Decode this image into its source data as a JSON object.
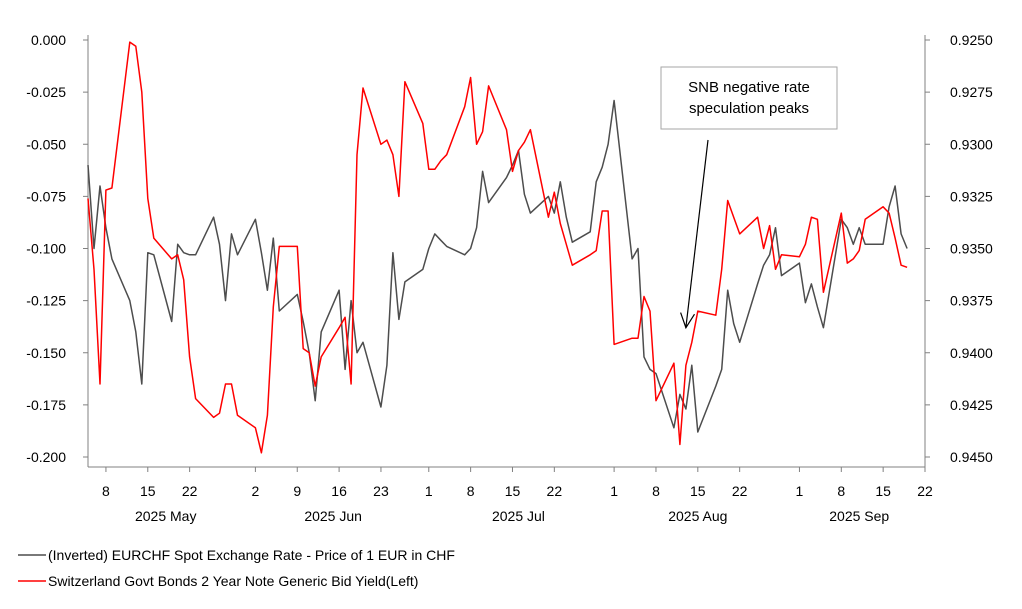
{
  "chart_data": {
    "type": "line",
    "xlim": [
      "2025-05-05",
      "2025-09-22"
    ],
    "y_left": {
      "ticks": [
        "0.000",
        "-0.025",
        "-0.050",
        "-0.075",
        "-0.100",
        "-0.125",
        "-0.150",
        "-0.175",
        "-0.200"
      ],
      "lim": [
        -0.2,
        0.0
      ]
    },
    "y_right": {
      "ticks": [
        "0.9250",
        "0.9275",
        "0.9300",
        "0.9325",
        "0.9350",
        "0.9375",
        "0.9400",
        "0.9425",
        "0.9450"
      ],
      "lim": [
        0.925,
        0.945
      ],
      "inverted": true
    },
    "x_ticks": [
      {
        "label": "8",
        "date": "2025-05-08"
      },
      {
        "label": "15",
        "date": "2025-05-15"
      },
      {
        "label": "22",
        "date": "2025-05-22"
      },
      {
        "label": "2",
        "date": "2025-06-02"
      },
      {
        "label": "9",
        "date": "2025-06-09"
      },
      {
        "label": "16",
        "date": "2025-06-16"
      },
      {
        "label": "23",
        "date": "2025-06-23"
      },
      {
        "label": "1",
        "date": "2025-07-01"
      },
      {
        "label": "8",
        "date": "2025-07-08"
      },
      {
        "label": "15",
        "date": "2025-07-15"
      },
      {
        "label": "22",
        "date": "2025-07-22"
      },
      {
        "label": "1",
        "date": "2025-08-01"
      },
      {
        "label": "8",
        "date": "2025-08-08"
      },
      {
        "label": "15",
        "date": "2025-08-15"
      },
      {
        "label": "22",
        "date": "2025-08-22"
      },
      {
        "label": "1",
        "date": "2025-09-01"
      },
      {
        "label": "8",
        "date": "2025-09-08"
      },
      {
        "label": "15",
        "date": "2025-09-15"
      },
      {
        "label": "22",
        "date": "2025-09-22"
      }
    ],
    "month_labels": [
      {
        "label": "2025 May",
        "date": "2025-05-18"
      },
      {
        "label": "2025 Jun",
        "date": "2025-06-15"
      },
      {
        "label": "2025 Jul",
        "date": "2025-07-16"
      },
      {
        "label": "2025 Aug",
        "date": "2025-08-15"
      },
      {
        "label": "2025 Sep",
        "date": "2025-09-11"
      }
    ],
    "series": [
      {
        "name": "(Inverted) EURCHF Spot Exchange Rate - Price of 1 EUR in CHF",
        "axis": "right",
        "color": "#4d4d4d",
        "points": [
          [
            "2025-05-05",
            0.931
          ],
          [
            "2025-05-06",
            0.935
          ],
          [
            "2025-05-07",
            0.932
          ],
          [
            "2025-05-08",
            0.934
          ],
          [
            "2025-05-09",
            0.9355
          ],
          [
            "2025-05-12",
            0.9375
          ],
          [
            "2025-05-13",
            0.939
          ],
          [
            "2025-05-14",
            0.9415
          ],
          [
            "2025-05-15",
            0.9352
          ],
          [
            "2025-05-16",
            0.9353
          ],
          [
            "2025-05-19",
            0.9385
          ],
          [
            "2025-05-20",
            0.9348
          ],
          [
            "2025-05-21",
            0.9352
          ],
          [
            "2025-05-22",
            0.9353
          ],
          [
            "2025-05-23",
            0.9353
          ],
          [
            "2025-05-26",
            0.9335
          ],
          [
            "2025-05-27",
            0.9348
          ],
          [
            "2025-05-28",
            0.9375
          ],
          [
            "2025-05-29",
            0.9343
          ],
          [
            "2025-05-30",
            0.9353
          ],
          [
            "2025-06-02",
            0.9336
          ],
          [
            "2025-06-03",
            0.9352
          ],
          [
            "2025-06-04",
            0.937
          ],
          [
            "2025-06-05",
            0.9345
          ],
          [
            "2025-06-06",
            0.938
          ],
          [
            "2025-06-09",
            0.9372
          ],
          [
            "2025-06-10",
            0.9385
          ],
          [
            "2025-06-11",
            0.94
          ],
          [
            "2025-06-12",
            0.9423
          ],
          [
            "2025-06-13",
            0.939
          ],
          [
            "2025-06-16",
            0.937
          ],
          [
            "2025-06-17",
            0.9408
          ],
          [
            "2025-06-18",
            0.9375
          ],
          [
            "2025-06-19",
            0.94
          ],
          [
            "2025-06-20",
            0.9395
          ],
          [
            "2025-06-23",
            0.9426
          ],
          [
            "2025-06-24",
            0.9406
          ],
          [
            "2025-06-25",
            0.9352
          ],
          [
            "2025-06-26",
            0.9384
          ],
          [
            "2025-06-27",
            0.9366
          ],
          [
            "2025-06-30",
            0.936
          ],
          [
            "2025-07-01",
            0.935
          ],
          [
            "2025-07-02",
            0.9343
          ],
          [
            "2025-07-03",
            0.9346
          ],
          [
            "2025-07-04",
            0.9349
          ],
          [
            "2025-07-07",
            0.9353
          ],
          [
            "2025-07-08",
            0.935
          ],
          [
            "2025-07-09",
            0.934
          ],
          [
            "2025-07-10",
            0.9313
          ],
          [
            "2025-07-11",
            0.9328
          ],
          [
            "2025-07-14",
            0.9316
          ],
          [
            "2025-07-15",
            0.931
          ],
          [
            "2025-07-16",
            0.9303
          ],
          [
            "2025-07-17",
            0.9324
          ],
          [
            "2025-07-18",
            0.9333
          ],
          [
            "2025-07-21",
            0.9325
          ],
          [
            "2025-07-22",
            0.9333
          ],
          [
            "2025-07-23",
            0.9318
          ],
          [
            "2025-07-24",
            0.9335
          ],
          [
            "2025-07-25",
            0.9347
          ],
          [
            "2025-07-28",
            0.9342
          ],
          [
            "2025-07-29",
            0.9318
          ],
          [
            "2025-07-30",
            0.9311
          ],
          [
            "2025-07-31",
            0.93
          ],
          [
            "2025-08-01",
            0.9279
          ],
          [
            "2025-08-04",
            0.9355
          ],
          [
            "2025-08-05",
            0.935
          ],
          [
            "2025-08-06",
            0.9402
          ],
          [
            "2025-08-07",
            0.9408
          ],
          [
            "2025-08-08",
            0.941
          ],
          [
            "2025-08-11",
            0.9436
          ],
          [
            "2025-08-12",
            0.942
          ],
          [
            "2025-08-13",
            0.9427
          ],
          [
            "2025-08-14",
            0.9406
          ],
          [
            "2025-08-15",
            0.9438
          ],
          [
            "2025-08-18",
            0.9416
          ],
          [
            "2025-08-19",
            0.9408
          ],
          [
            "2025-08-20",
            0.937
          ],
          [
            "2025-08-21",
            0.9386
          ],
          [
            "2025-08-22",
            0.9395
          ],
          [
            "2025-08-25",
            0.9367
          ],
          [
            "2025-08-26",
            0.9358
          ],
          [
            "2025-08-27",
            0.9353
          ],
          [
            "2025-08-28",
            0.934
          ],
          [
            "2025-08-29",
            0.9363
          ],
          [
            "2025-09-01",
            0.9357
          ],
          [
            "2025-09-02",
            0.9376
          ],
          [
            "2025-09-03",
            0.9367
          ],
          [
            "2025-09-04",
            0.9378
          ],
          [
            "2025-09-05",
            0.9388
          ],
          [
            "2025-09-08",
            0.9336
          ],
          [
            "2025-09-09",
            0.934
          ],
          [
            "2025-09-10",
            0.9348
          ],
          [
            "2025-09-11",
            0.934
          ],
          [
            "2025-09-12",
            0.9348
          ],
          [
            "2025-09-15",
            0.9348
          ],
          [
            "2025-09-16",
            0.933
          ],
          [
            "2025-09-17",
            0.932
          ],
          [
            "2025-09-18",
            0.9343
          ],
          [
            "2025-09-19",
            0.935
          ]
        ]
      },
      {
        "name": "Switzerland Govt Bonds 2 Year Note Generic Bid Yield(Left)",
        "axis": "left",
        "color": "#ff0000",
        "points": [
          [
            "2025-05-05",
            -0.076
          ],
          [
            "2025-05-06",
            -0.11
          ],
          [
            "2025-05-07",
            -0.165
          ],
          [
            "2025-05-08",
            -0.072
          ],
          [
            "2025-05-09",
            -0.071
          ],
          [
            "2025-05-12",
            -0.001
          ],
          [
            "2025-05-13",
            -0.003
          ],
          [
            "2025-05-14",
            -0.025
          ],
          [
            "2025-05-15",
            -0.076
          ],
          [
            "2025-05-16",
            -0.095
          ],
          [
            "2025-05-19",
            -0.105
          ],
          [
            "2025-05-20",
            -0.103
          ],
          [
            "2025-05-21",
            -0.115
          ],
          [
            "2025-05-22",
            -0.152
          ],
          [
            "2025-05-23",
            -0.172
          ],
          [
            "2025-05-26",
            -0.181
          ],
          [
            "2025-05-27",
            -0.179
          ],
          [
            "2025-05-28",
            -0.165
          ],
          [
            "2025-05-29",
            -0.165
          ],
          [
            "2025-05-30",
            -0.18
          ],
          [
            "2025-06-02",
            -0.186
          ],
          [
            "2025-06-03",
            -0.198
          ],
          [
            "2025-06-04",
            -0.18
          ],
          [
            "2025-06-05",
            -0.128
          ],
          [
            "2025-06-06",
            -0.099
          ],
          [
            "2025-06-09",
            -0.099
          ],
          [
            "2025-06-10",
            -0.148
          ],
          [
            "2025-06-11",
            -0.15
          ],
          [
            "2025-06-12",
            -0.166
          ],
          [
            "2025-06-13",
            -0.152
          ],
          [
            "2025-06-16",
            -0.138
          ],
          [
            "2025-06-17",
            -0.133
          ],
          [
            "2025-06-18",
            -0.165
          ],
          [
            "2025-06-19",
            -0.055
          ],
          [
            "2025-06-20",
            -0.023
          ],
          [
            "2025-06-23",
            -0.05
          ],
          [
            "2025-06-24",
            -0.048
          ],
          [
            "2025-06-25",
            -0.055
          ],
          [
            "2025-06-26",
            -0.075
          ],
          [
            "2025-06-27",
            -0.02
          ],
          [
            "2025-06-30",
            -0.04
          ],
          [
            "2025-07-01",
            -0.062
          ],
          [
            "2025-07-02",
            -0.062
          ],
          [
            "2025-07-03",
            -0.058
          ],
          [
            "2025-07-04",
            -0.055
          ],
          [
            "2025-07-07",
            -0.032
          ],
          [
            "2025-07-08",
            -0.018
          ],
          [
            "2025-07-09",
            -0.05
          ],
          [
            "2025-07-10",
            -0.044
          ],
          [
            "2025-07-11",
            -0.022
          ],
          [
            "2025-07-14",
            -0.043
          ],
          [
            "2025-07-15",
            -0.063
          ],
          [
            "2025-07-16",
            -0.053
          ],
          [
            "2025-07-17",
            -0.049
          ],
          [
            "2025-07-18",
            -0.043
          ],
          [
            "2025-07-21",
            -0.085
          ],
          [
            "2025-07-22",
            -0.073
          ],
          [
            "2025-07-23",
            -0.088
          ],
          [
            "2025-07-24",
            -0.098
          ],
          [
            "2025-07-25",
            -0.108
          ],
          [
            "2025-07-28",
            -0.103
          ],
          [
            "2025-07-29",
            -0.101
          ],
          [
            "2025-07-30",
            -0.082
          ],
          [
            "2025-07-31",
            -0.082
          ],
          [
            "2025-08-01",
            -0.146
          ],
          [
            "2025-08-04",
            -0.143
          ],
          [
            "2025-08-05",
            -0.143
          ],
          [
            "2025-08-06",
            -0.123
          ],
          [
            "2025-08-07",
            -0.13
          ],
          [
            "2025-08-08",
            -0.173
          ],
          [
            "2025-08-11",
            -0.155
          ],
          [
            "2025-08-12",
            -0.194
          ],
          [
            "2025-08-13",
            -0.156
          ],
          [
            "2025-08-14",
            -0.145
          ],
          [
            "2025-08-15",
            -0.13
          ],
          [
            "2025-08-18",
            -0.132
          ],
          [
            "2025-08-19",
            -0.11
          ],
          [
            "2025-08-20",
            -0.077
          ],
          [
            "2025-08-21",
            -0.085
          ],
          [
            "2025-08-22",
            -0.093
          ],
          [
            "2025-08-25",
            -0.085
          ],
          [
            "2025-08-26",
            -0.1
          ],
          [
            "2025-08-27",
            -0.089
          ],
          [
            "2025-08-28",
            -0.11
          ],
          [
            "2025-08-29",
            -0.103
          ],
          [
            "2025-09-01",
            -0.104
          ],
          [
            "2025-09-02",
            -0.098
          ],
          [
            "2025-09-03",
            -0.085
          ],
          [
            "2025-09-04",
            -0.086
          ],
          [
            "2025-09-05",
            -0.121
          ],
          [
            "2025-09-08",
            -0.083
          ],
          [
            "2025-09-09",
            -0.107
          ],
          [
            "2025-09-10",
            -0.105
          ],
          [
            "2025-09-11",
            -0.101
          ],
          [
            "2025-09-12",
            -0.086
          ],
          [
            "2025-09-15",
            -0.08
          ],
          [
            "2025-09-16",
            -0.083
          ],
          [
            "2025-09-17",
            -0.095
          ],
          [
            "2025-09-18",
            -0.108
          ],
          [
            "2025-09-19",
            -0.109
          ]
        ]
      }
    ],
    "annotation": {
      "line1": "SNB negative rate",
      "line2": "speculation peaks",
      "arrow_target": {
        "date": "2025-08-13",
        "value_left": -0.138
      }
    },
    "legend": {
      "placement": "bottom-left",
      "entries": [
        {
          "label": "(Inverted) EURCHF Spot Exchange Rate - Price of 1 EUR in CHF",
          "color": "#4d4d4d"
        },
        {
          "label": "Switzerland Govt Bonds 2 Year Note Generic Bid Yield(Left)",
          "color": "#ff0000"
        }
      ]
    },
    "grid": false
  }
}
